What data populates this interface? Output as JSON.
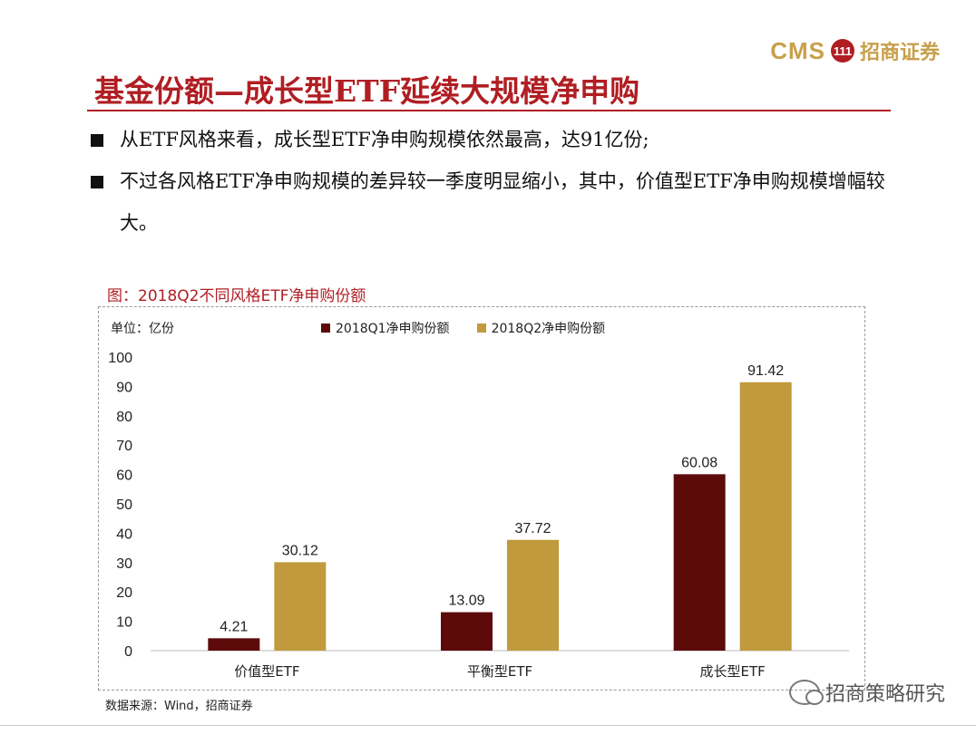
{
  "logo": {
    "brand": "CMS",
    "mark": "111",
    "name": "招商证券"
  },
  "title": "基金份额—成长型ETF延续大规模净申购",
  "bullets": [
    "从ETF风格来看，成长型ETF净申购规模依然最高，达91亿份;",
    "不过各风格ETF净申购规模的差异较一季度明显缩小，其中，价值型ETF净申购规模增幅较大。"
  ],
  "chart_title": "图：2018Q2不同风格ETF净申购份额",
  "unit_label": "单位：亿份",
  "source": "数据来源：Wind，招商证券",
  "watermark": "招商策略研究",
  "chart_data": {
    "type": "bar",
    "categories": [
      "价值型ETF",
      "平衡型ETF",
      "成长型ETF"
    ],
    "series": [
      {
        "name": "2018Q1净申购份额",
        "values": [
          4.21,
          13.09,
          60.08
        ],
        "color": "#5c0a0a"
      },
      {
        "name": "2018Q2净申购份额",
        "values": [
          30.12,
          37.72,
          91.42
        ],
        "color": "#c09a3c"
      }
    ],
    "ylim": [
      0,
      100
    ],
    "yticks": [
      0,
      10,
      20,
      30,
      40,
      50,
      60,
      70,
      80,
      90,
      100
    ],
    "legend": "top",
    "grid": false
  }
}
